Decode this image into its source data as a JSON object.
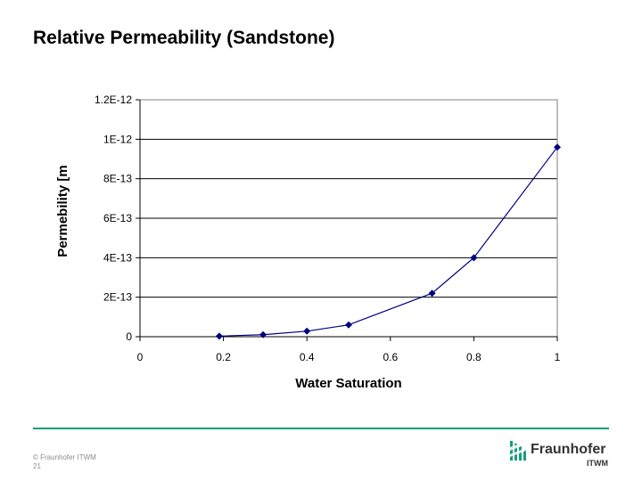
{
  "slide": {
    "title": "Relative Permeability (Sandstone)",
    "footer_copyright": "© Fraunhofer ITWM",
    "page_number": "21",
    "logo_name": "Fraunhofer",
    "logo_sub": "ITWM",
    "accent_color": "#179c7d"
  },
  "chart_data": {
    "type": "scatter",
    "title": "",
    "xlabel": "Water Saturation",
    "ylabel": "Permebility [m",
    "xlim": [
      0,
      1
    ],
    "ylim": [
      0,
      1.2e-12
    ],
    "x_ticks": [
      "0",
      "0.2",
      "0.4",
      "0.6",
      "0.8",
      "1"
    ],
    "y_ticks": [
      "0",
      "2E-13",
      "4E-13",
      "6E-13",
      "8E-13",
      "1E-12",
      "1.2E-12"
    ],
    "grid": "horizontal",
    "series": [
      {
        "color": "#000080",
        "marker": "diamond",
        "line": true,
        "x": [
          0.19,
          0.295,
          0.4,
          0.5,
          0.7,
          0.8,
          1.0
        ],
        "y": [
          3e-15,
          1e-14,
          2.8e-14,
          6e-14,
          2.2e-13,
          4e-13,
          9.6e-13
        ]
      }
    ]
  }
}
